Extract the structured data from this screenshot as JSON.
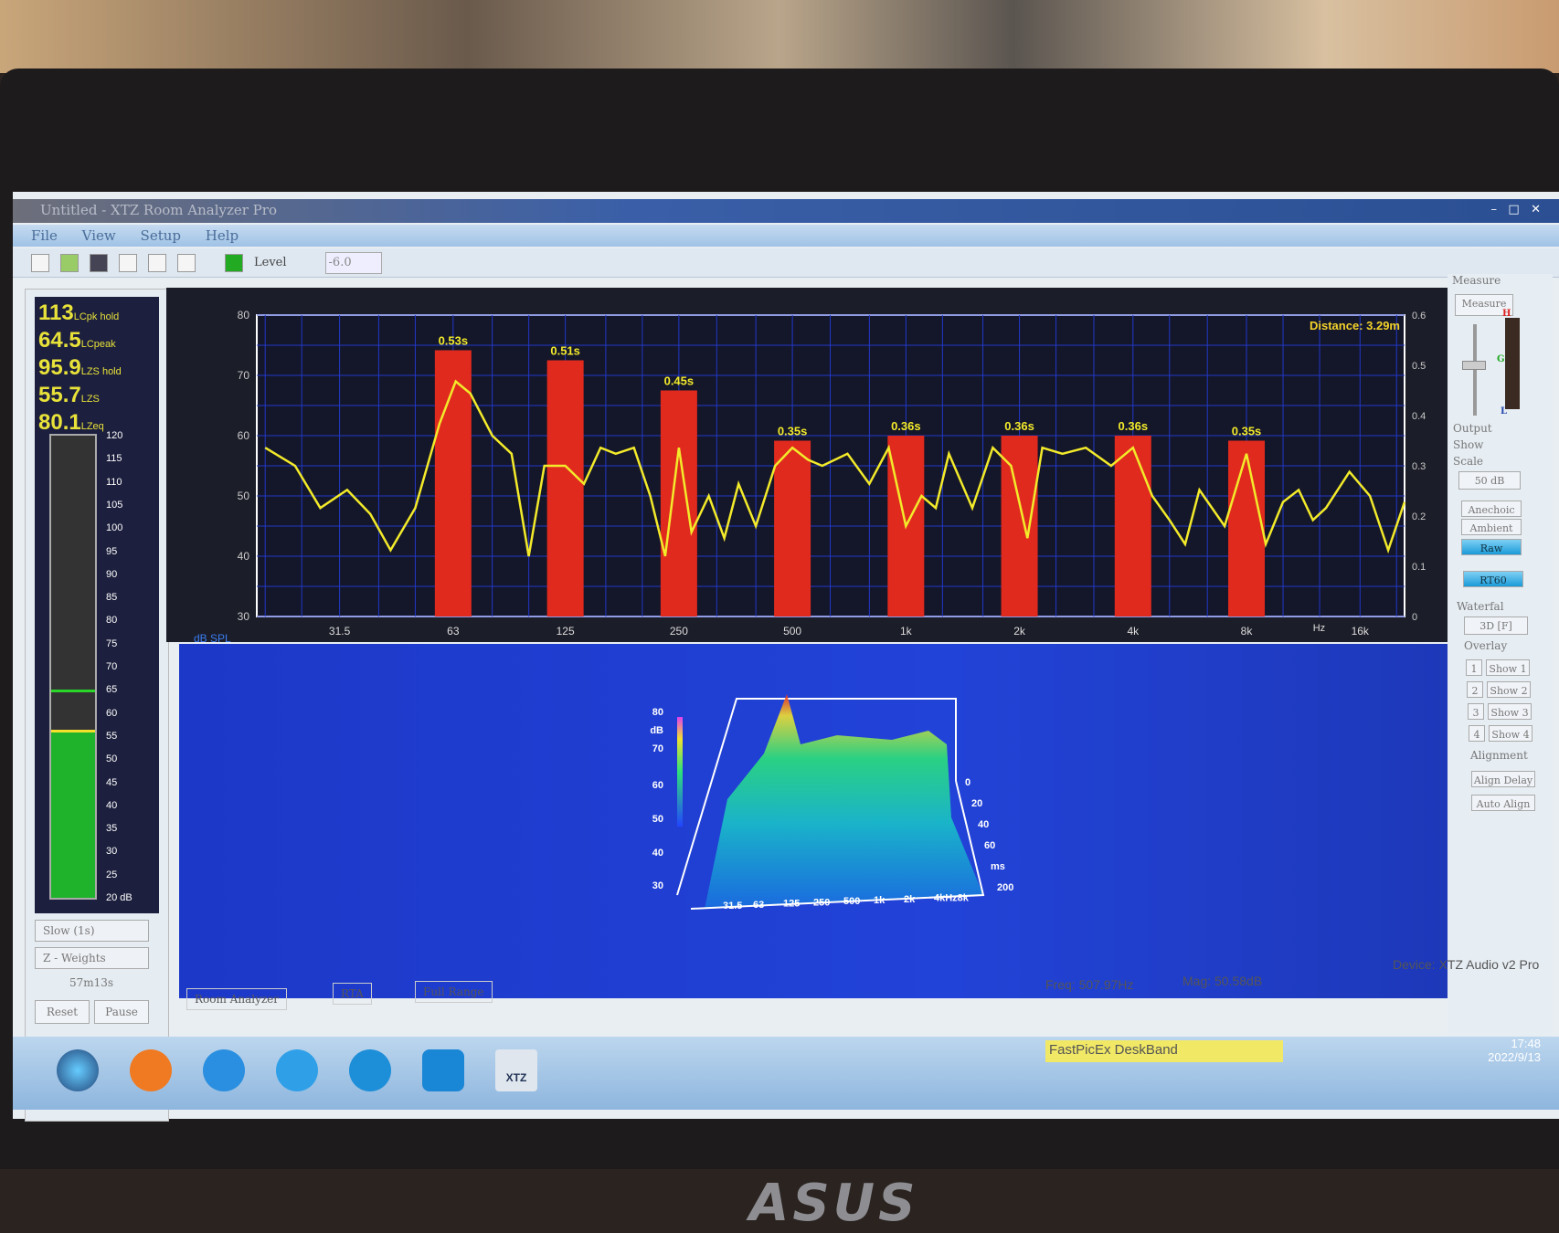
{
  "window": {
    "title": "Untitled - XTZ Room Analyzer Pro",
    "controls": [
      "–",
      "□",
      "✕"
    ]
  },
  "menu": [
    "File",
    "View",
    "Setup",
    "Help"
  ],
  "toolbar": {
    "level_label": "Level",
    "level_value": "-6.0",
    "icons": [
      "new-icon",
      "open-icon",
      "save-icon",
      "print-icon",
      "ref-icon",
      "ref2-icon",
      "dsp-icon"
    ]
  },
  "left_panel": {
    "readouts": [
      {
        "value": "113",
        "label": "LCpk hold"
      },
      {
        "value": "64.5",
        "label": "LCpeak"
      },
      {
        "value": "95.9",
        "label": "LZS hold"
      },
      {
        "value": "55.7",
        "label": "LZS"
      },
      {
        "value": "80.1",
        "label": "LZeq"
      }
    ],
    "meter_scale": [
      "120",
      "115",
      "110",
      "105",
      "100",
      "95",
      "90",
      "85",
      "80",
      "75",
      "70",
      "65",
      "60",
      "55",
      "50",
      "45",
      "40",
      "35",
      "30",
      "25",
      "20 dB"
    ],
    "meter_level_db": 55.7,
    "meter_markers_db": [
      64.5,
      55.7
    ],
    "speed_select": "Slow (1s)",
    "weighting_select": "Z - Weights",
    "elapsed": "57m13s",
    "reset_label": "Reset",
    "pause_label": "Pause"
  },
  "chart_data": {
    "type": "line",
    "distance_label": "Distance: 3.29m",
    "ylabel": "dB SPL",
    "xunit": "Hz",
    "ylim": [
      30,
      80
    ],
    "y_ticks": [
      "80",
      "70",
      "60",
      "50",
      "40",
      "30"
    ],
    "xlim": [
      19,
      21000
    ],
    "x_scale": "log",
    "x_ticks": [
      {
        "v": 31.5,
        "l": "31.5"
      },
      {
        "v": 63,
        "l": "63"
      },
      {
        "v": 125,
        "l": "125"
      },
      {
        "v": 250,
        "l": "250"
      },
      {
        "v": 500,
        "l": "500"
      },
      {
        "v": 1000,
        "l": "1k"
      },
      {
        "v": 2000,
        "l": "2k"
      },
      {
        "v": 4000,
        "l": "4k"
      },
      {
        "v": 8000,
        "l": "8k"
      },
      {
        "v": 16000,
        "l": "16k"
      }
    ],
    "y2lim": [
      0,
      0.6
    ],
    "y2_ticks": [
      "0.6",
      "0.5",
      "0.4",
      "0.3",
      "0.2",
      "0.1",
      "0"
    ],
    "grid": true,
    "rt60": {
      "color": "#e02a1e",
      "bands": [
        63,
        125,
        250,
        500,
        1000,
        2000,
        4000,
        8000
      ],
      "values": [
        0.53,
        0.51,
        0.45,
        0.35,
        0.36,
        0.36,
        0.36,
        0.35
      ],
      "labels": [
        "0.53s",
        "0.51s",
        "0.45s",
        "0.35s",
        "0.36s",
        "0.36s",
        "0.36s",
        "0.35s"
      ]
    },
    "series": [
      {
        "color": "#f2ea2a",
        "points": [
          [
            20,
            58
          ],
          [
            24,
            55
          ],
          [
            28,
            48
          ],
          [
            33,
            51
          ],
          [
            38,
            47
          ],
          [
            43,
            41
          ],
          [
            50,
            48
          ],
          [
            58,
            62
          ],
          [
            64,
            69
          ],
          [
            70,
            67
          ],
          [
            80,
            60
          ],
          [
            90,
            57
          ],
          [
            100,
            40
          ],
          [
            110,
            55
          ],
          [
            125,
            55
          ],
          [
            140,
            52
          ],
          [
            155,
            58
          ],
          [
            170,
            57
          ],
          [
            190,
            58
          ],
          [
            210,
            50
          ],
          [
            230,
            40
          ],
          [
            250,
            58
          ],
          [
            270,
            44
          ],
          [
            300,
            50
          ],
          [
            330,
            43
          ],
          [
            360,
            52
          ],
          [
            400,
            45
          ],
          [
            450,
            55
          ],
          [
            500,
            58
          ],
          [
            550,
            56
          ],
          [
            600,
            55
          ],
          [
            700,
            57
          ],
          [
            800,
            52
          ],
          [
            900,
            58
          ],
          [
            1000,
            45
          ],
          [
            1100,
            50
          ],
          [
            1200,
            48
          ],
          [
            1300,
            57
          ],
          [
            1500,
            48
          ],
          [
            1700,
            58
          ],
          [
            1900,
            55
          ],
          [
            2100,
            43
          ],
          [
            2300,
            58
          ],
          [
            2600,
            57
          ],
          [
            3000,
            58
          ],
          [
            3500,
            55
          ],
          [
            4000,
            58
          ],
          [
            4500,
            50
          ],
          [
            5000,
            46
          ],
          [
            5500,
            42
          ],
          [
            6000,
            51
          ],
          [
            7000,
            45
          ],
          [
            8000,
            57
          ],
          [
            9000,
            42
          ],
          [
            10000,
            49
          ],
          [
            11000,
            51
          ],
          [
            12000,
            46
          ],
          [
            13000,
            48
          ],
          [
            15000,
            54
          ],
          [
            17000,
            50
          ],
          [
            19000,
            41
          ],
          [
            21000,
            49
          ]
        ]
      }
    ]
  },
  "waterfall": {
    "z_ticks": [
      "80",
      "dB",
      "70",
      "60",
      "50",
      "40",
      "30"
    ],
    "x_ticks": [
      "31.5",
      "63",
      "125",
      "250",
      "500",
      "1k",
      "2k",
      "4kHz8k"
    ],
    "t_ticks": [
      "0",
      "20",
      "40",
      "60",
      "ms",
      "200"
    ]
  },
  "right_panel": {
    "measure_group": "Measure",
    "measure_button": "Measure",
    "meter_labels": [
      "H",
      "G",
      "L"
    ],
    "output_label": "Output",
    "show_label": "Show",
    "scale_label": "Scale",
    "scale_select": "50 dB",
    "anechoic": "Anechoic",
    "ambient": "Ambient",
    "raw": "Raw",
    "rt60": "RT60",
    "waterfall_label": "Waterfal",
    "waterfall_select": "3D [F]",
    "overlay_label": "Overlay",
    "overlays": [
      {
        "n": "1",
        "show": "Show 1"
      },
      {
        "n": "2",
        "show": "Show 2"
      },
      {
        "n": "3",
        "show": "Show 3"
      },
      {
        "n": "4",
        "show": "Show 4"
      }
    ],
    "alignment_label": "Alignment",
    "align_delay": "Align Delay",
    "auto_align": "Auto Align"
  },
  "status": {
    "tabs": [
      "Room Analyzer",
      "RTA",
      "Full Range"
    ],
    "freq": "Freq: 507.97Hz",
    "mag": "Mag: 50.58dB",
    "device": "Device: XTZ Audio v2 Pro"
  },
  "taskbar": {
    "deskband": "FastPicEx DeskBand",
    "time": "17:48",
    "date": "2022/9/13",
    "xtz_label": "XTZ"
  },
  "bezel_brand": "ASUS"
}
